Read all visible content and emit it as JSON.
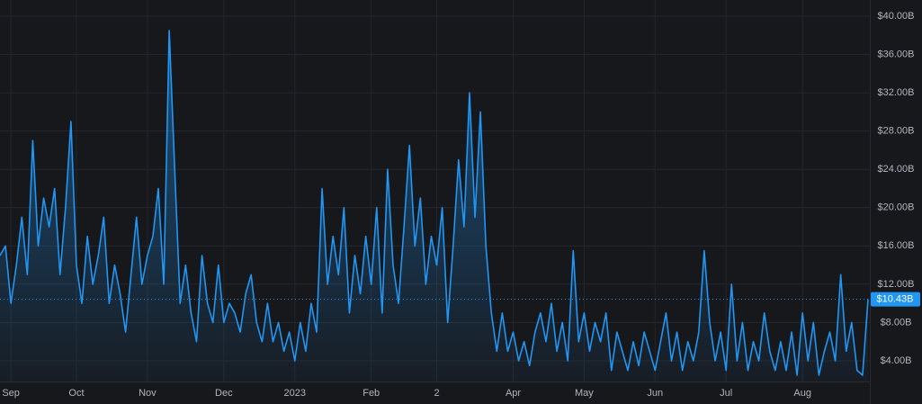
{
  "chart_data": {
    "type": "line",
    "categories": [
      null,
      null,
      "Sep",
      null,
      null,
      null,
      null,
      null,
      null,
      null,
      null,
      null,
      null,
      null,
      "Oct",
      null,
      null,
      null,
      null,
      null,
      null,
      null,
      null,
      null,
      null,
      null,
      null,
      "Nov",
      null,
      null,
      null,
      null,
      null,
      null,
      null,
      null,
      null,
      null,
      null,
      null,
      null,
      "Dec",
      null,
      null,
      null,
      null,
      null,
      null,
      null,
      null,
      null,
      null,
      null,
      null,
      "2023",
      null,
      null,
      null,
      null,
      null,
      null,
      null,
      null,
      null,
      null,
      null,
      null,
      null,
      "Feb",
      null,
      null,
      null,
      null,
      null,
      null,
      null,
      null,
      null,
      null,
      null,
      "2",
      null,
      null,
      null,
      null,
      null,
      null,
      null,
      null,
      null,
      null,
      null,
      null,
      null,
      "Apr",
      null,
      null,
      null,
      null,
      null,
      null,
      null,
      null,
      null,
      null,
      null,
      null,
      "May",
      null,
      null,
      null,
      null,
      null,
      null,
      null,
      null,
      null,
      null,
      null,
      null,
      "Jun",
      null,
      null,
      null,
      null,
      null,
      null,
      null,
      null,
      null,
      null,
      null,
      null,
      "Jul",
      null,
      null,
      null,
      null,
      null,
      null,
      null,
      null,
      null,
      null,
      null,
      null,
      null,
      "Aug",
      null,
      null,
      null,
      null,
      null,
      null,
      null,
      null,
      null,
      null,
      null,
      null
    ],
    "values": [
      15,
      16,
      10,
      14,
      19,
      13,
      27,
      16,
      21,
      18,
      22,
      13,
      20,
      29,
      14,
      10,
      17,
      12,
      15,
      19,
      10,
      14,
      11,
      7,
      13,
      19,
      12,
      15,
      17,
      22,
      12,
      38.5,
      24,
      10,
      14,
      9,
      6,
      15,
      10,
      8,
      14,
      8,
      10,
      9,
      7,
      11,
      13,
      8,
      6,
      10,
      6,
      8,
      5,
      7,
      4,
      8,
      5,
      10,
      7,
      22,
      12,
      17,
      13,
      20,
      9,
      15,
      11,
      17,
      12,
      20,
      9,
      24,
      14,
      10,
      18,
      26.5,
      16,
      21,
      12,
      17,
      14,
      20,
      8,
      16,
      25,
      18,
      32,
      19,
      30,
      16,
      9,
      5,
      9,
      5,
      7,
      4,
      6,
      3.5,
      7,
      9,
      6,
      10,
      5,
      8,
      4,
      15.5,
      6,
      9,
      5,
      8,
      6,
      9,
      3,
      7,
      5,
      3,
      6,
      3.5,
      7,
      5,
      3,
      6,
      9,
      4,
      7,
      3,
      6,
      4,
      7,
      15.5,
      8,
      4,
      7,
      3,
      12,
      4,
      8,
      3,
      6,
      4,
      9,
      5,
      3,
      6,
      3,
      7,
      2.5,
      9,
      4,
      8,
      2.5,
      5,
      7,
      4,
      13,
      5,
      8,
      3,
      2.5,
      10.43
    ],
    "color": "#2196f3",
    "last_value_label": "$10.43B",
    "ylim": [
      1.84,
      41.69
    ],
    "yticks": [
      {
        "value": 4,
        "label": "$4.00B"
      },
      {
        "value": 8,
        "label": "$8.00B"
      },
      {
        "value": 12,
        "label": "$12.00B"
      },
      {
        "value": 16,
        "label": "$16.00B"
      },
      {
        "value": 20,
        "label": "$20.00B"
      },
      {
        "value": 24,
        "label": "$24.00B"
      },
      {
        "value": 28,
        "label": "$28.00B"
      },
      {
        "value": 32,
        "label": "$32.00B"
      },
      {
        "value": 36,
        "label": "$36.00B"
      },
      {
        "value": 40,
        "label": "$40.00B"
      }
    ],
    "grid": true
  }
}
